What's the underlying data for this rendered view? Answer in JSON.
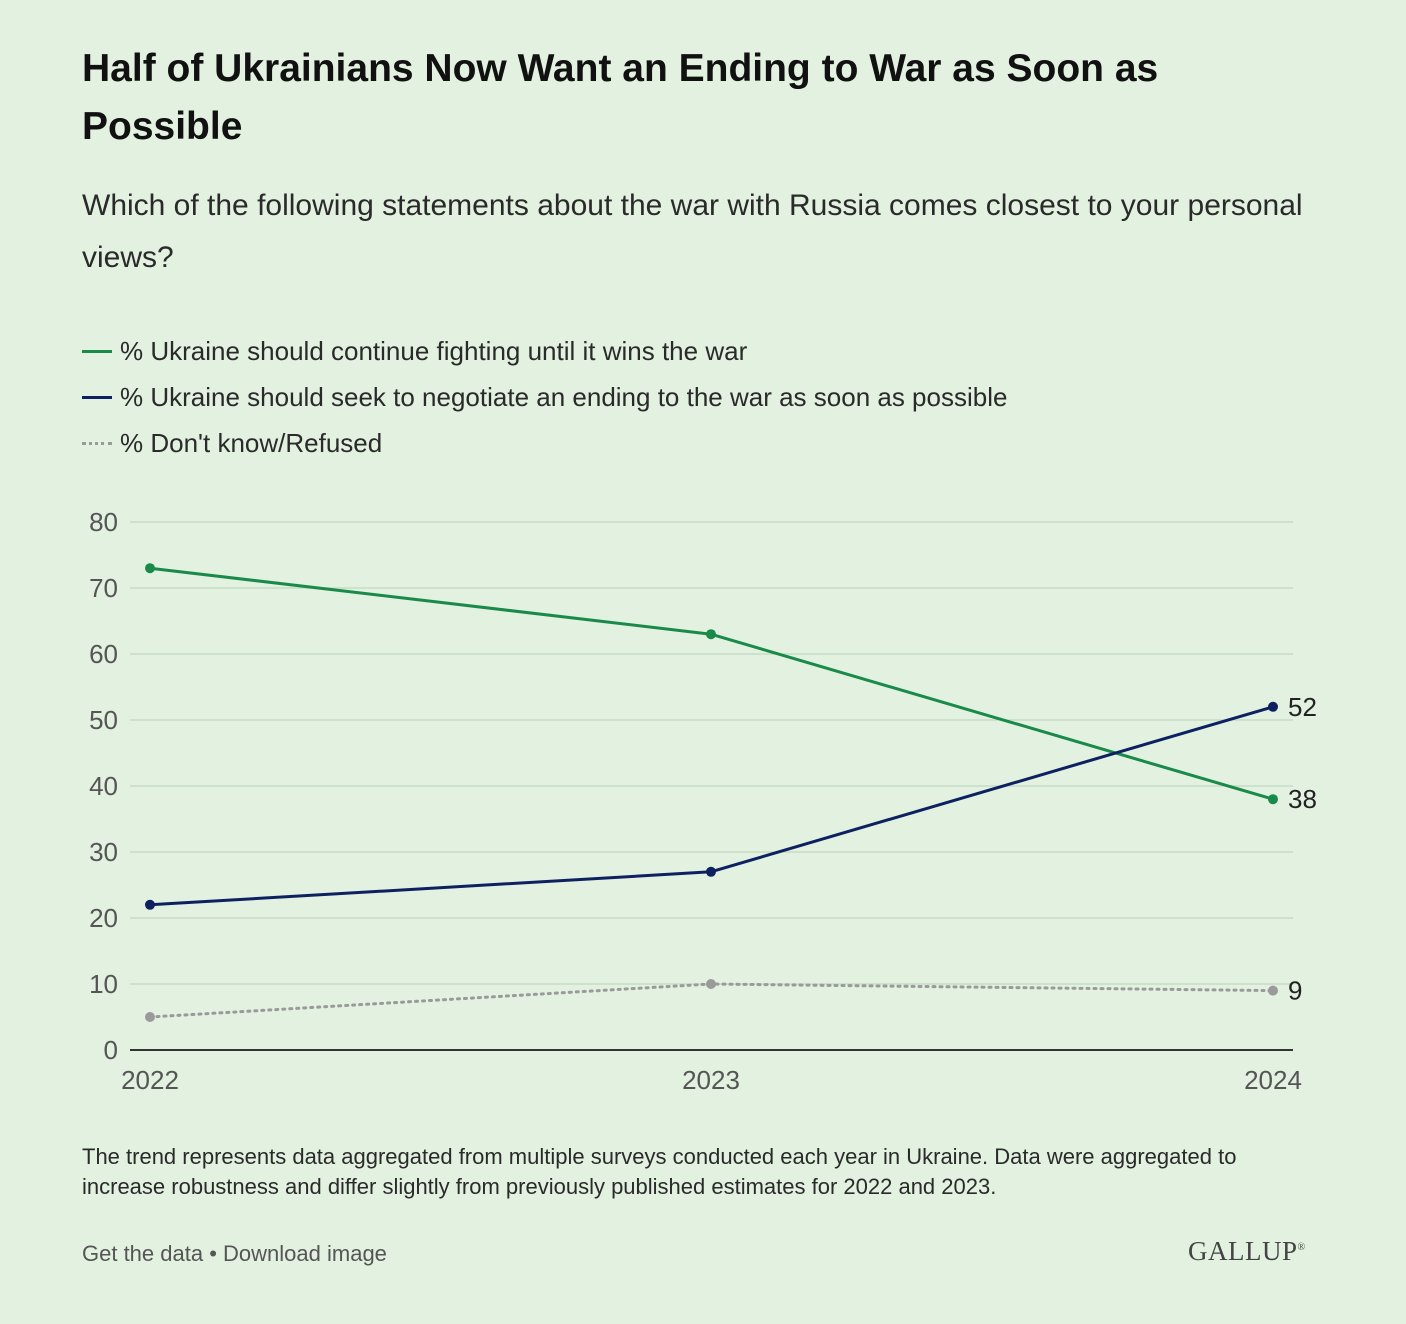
{
  "title": "Half of Ukrainians Now Want an Ending to War as Soon as Possible",
  "subtitle": "Which of the following statements about the war with Russia comes closest to your personal views?",
  "chart_data": {
    "type": "line",
    "title": "Half of Ukrainians Now Want an Ending to War as Soon as Possible",
    "xlabel": "",
    "ylabel": "",
    "x": [
      "2022",
      "2023",
      "2024"
    ],
    "ylim": [
      0,
      80
    ],
    "yticks": [
      0,
      10,
      20,
      30,
      40,
      50,
      60,
      70,
      80
    ],
    "grid": true,
    "legend_position": "top-left",
    "series": [
      {
        "key": "fight",
        "name": "% Ukraine should continue fighting until it wins the war",
        "values": [
          73,
          63,
          38
        ],
        "color": "#1a8a4a",
        "style": "solid",
        "end_label": "38"
      },
      {
        "key": "negotiate",
        "name": "% Ukraine should seek to negotiate an ending to the war as soon as possible",
        "values": [
          22,
          27,
          52
        ],
        "color": "#0d2160",
        "style": "solid",
        "end_label": "52"
      },
      {
        "key": "dk",
        "name": "% Don't know/Refused",
        "values": [
          5,
          10,
          9
        ],
        "color": "#9a9a9a",
        "style": "dotted",
        "end_label": "9"
      }
    ]
  },
  "note": "The trend represents data aggregated from multiple surveys conducted each year in Ukraine. Data were aggregated to increase robustness and differ slightly from previously published estimates for 2022 and 2023.",
  "footer": {
    "get_data": "Get the data",
    "separator": "•",
    "download": "Download image",
    "logo": "GALLUP",
    "logo_mark": "®"
  }
}
